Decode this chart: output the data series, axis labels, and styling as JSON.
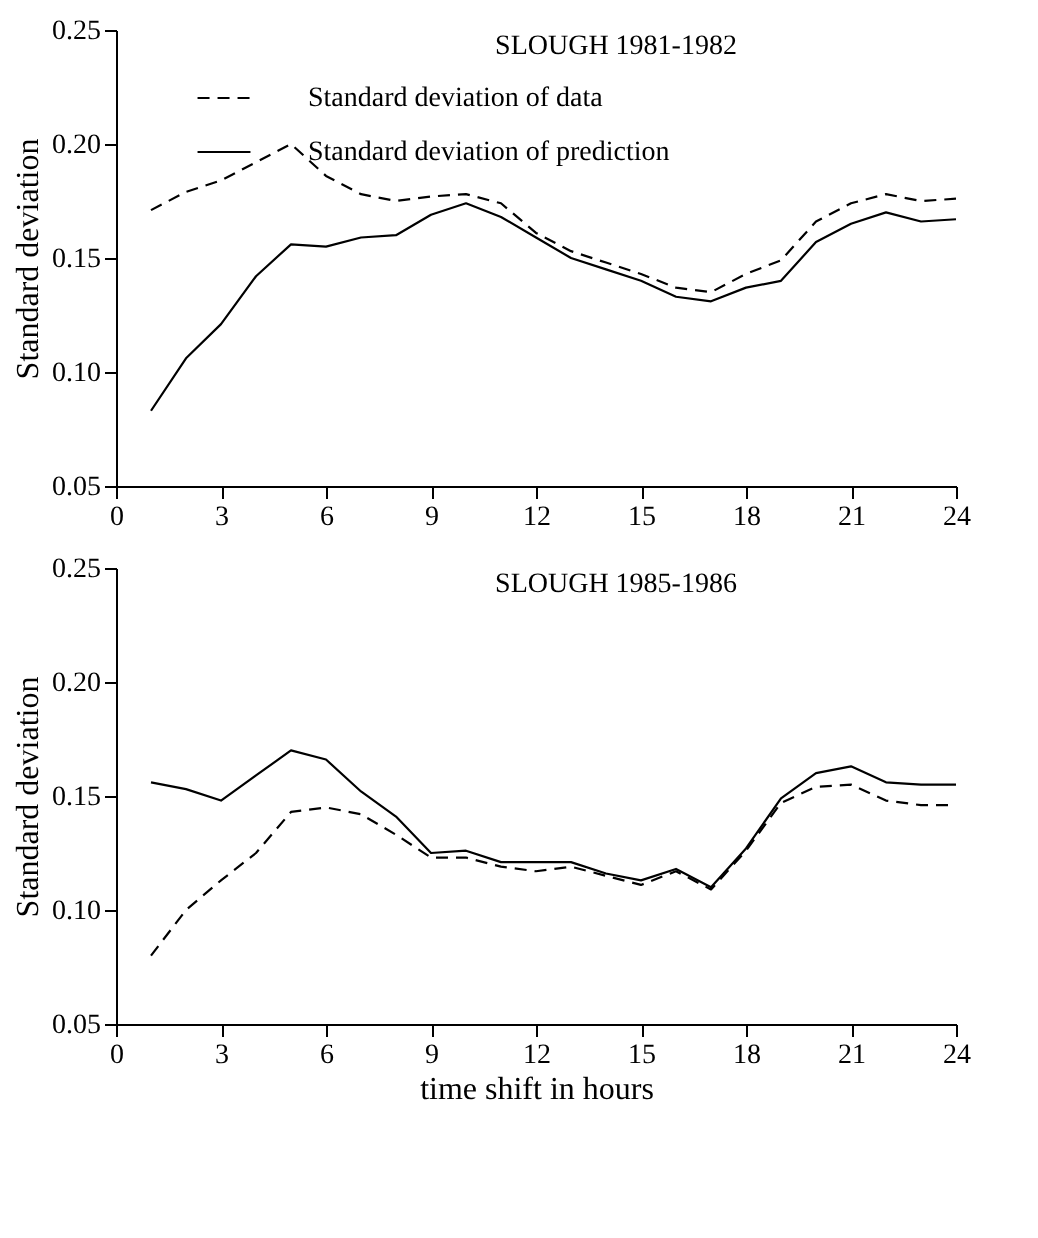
{
  "chart_data": [
    {
      "type": "line",
      "title": "SLOUGH 1981-1982",
      "ylabel": "Standard deviation",
      "legend": "top",
      "xlim": [
        0,
        24
      ],
      "xticks": [
        0,
        3,
        6,
        9,
        12,
        15,
        18,
        21,
        24
      ],
      "ylim": [
        0.05,
        0.25
      ],
      "yticks": [
        {
          "value": 0.05,
          "label": "0.05"
        },
        {
          "value": 0.1,
          "label": "0.10"
        },
        {
          "value": 0.15,
          "label": "0.15"
        },
        {
          "value": 0.2,
          "label": "0.20"
        },
        {
          "value": 0.25,
          "label": "0.25"
        }
      ],
      "x": [
        1,
        2,
        3,
        4,
        5,
        6,
        7,
        8,
        9,
        10,
        11,
        12,
        13,
        14,
        15,
        16,
        17,
        18,
        19,
        20,
        21,
        22,
        23,
        24
      ],
      "series": [
        {
          "name": "Standard deviation of data",
          "color": "#000000",
          "line_style": "dashed",
          "values": [
            0.171,
            0.179,
            0.184,
            0.192,
            0.2,
            0.186,
            0.178,
            0.175,
            0.177,
            0.178,
            0.174,
            0.161,
            0.153,
            0.148,
            0.143,
            0.137,
            0.135,
            0.143,
            0.149,
            0.166,
            0.174,
            0.178,
            0.175,
            0.176
          ]
        },
        {
          "name": "Standard deviation of prediction",
          "color": "#000000",
          "line_style": "solid",
          "values": [
            0.083,
            0.106,
            0.121,
            0.142,
            0.156,
            0.155,
            0.159,
            0.16,
            0.169,
            0.174,
            0.168,
            0.159,
            0.15,
            0.145,
            0.14,
            0.133,
            0.131,
            0.137,
            0.14,
            0.157,
            0.165,
            0.17,
            0.166,
            0.167
          ]
        }
      ]
    },
    {
      "type": "line",
      "title": "SLOUGH 1985-1986",
      "ylabel": "Standard deviation",
      "xlabel": "time shift in hours",
      "xlim": [
        0,
        24
      ],
      "xticks": [
        0,
        3,
        6,
        9,
        12,
        15,
        18,
        21,
        24
      ],
      "ylim": [
        0.05,
        0.25
      ],
      "yticks": [
        {
          "value": 0.05,
          "label": "0.05"
        },
        {
          "value": 0.1,
          "label": "0.10"
        },
        {
          "value": 0.15,
          "label": "0.15"
        },
        {
          "value": 0.2,
          "label": "0.20"
        },
        {
          "value": 0.25,
          "label": "0.25"
        }
      ],
      "x": [
        1,
        2,
        3,
        4,
        5,
        6,
        7,
        8,
        9,
        10,
        11,
        12,
        13,
        14,
        15,
        16,
        17,
        18,
        19,
        20,
        21,
        22,
        23,
        24
      ],
      "series": [
        {
          "color": "#000000",
          "line_style": "dashed",
          "values": [
            0.08,
            0.1,
            0.113,
            0.125,
            0.143,
            0.145,
            0.142,
            0.133,
            0.123,
            0.123,
            0.119,
            0.117,
            0.119,
            0.115,
            0.111,
            0.117,
            0.109,
            0.126,
            0.147,
            0.154,
            0.155,
            0.148,
            0.146,
            0.146
          ]
        },
        {
          "color": "#000000",
          "line_style": "solid",
          "values": [
            0.156,
            0.153,
            0.148,
            0.159,
            0.17,
            0.166,
            0.152,
            0.141,
            0.125,
            0.126,
            0.121,
            0.121,
            0.121,
            0.116,
            0.113,
            0.118,
            0.11,
            0.127,
            0.149,
            0.16,
            0.163,
            0.156,
            0.155,
            0.155
          ]
        }
      ]
    }
  ]
}
